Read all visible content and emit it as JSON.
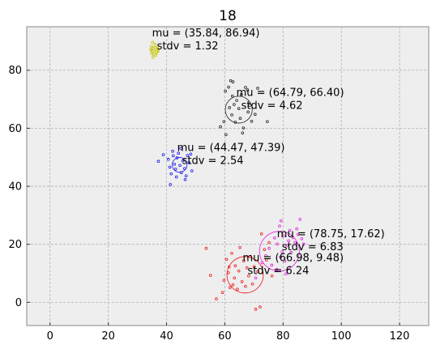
{
  "chart_data": {
    "type": "scatter",
    "title": "18",
    "xlabel": "",
    "ylabel": "",
    "xlim": [
      -8,
      130
    ],
    "ylim": [
      -8,
      95
    ],
    "xticks": [
      0,
      20,
      40,
      60,
      80,
      100,
      120
    ],
    "yticks": [
      0,
      20,
      40,
      60,
      80
    ],
    "grid": true,
    "background": "#eeeeee",
    "clusters": [
      {
        "color": "#c8c814",
        "mu": [
          35.84,
          86.94
        ],
        "stdv": 1.32,
        "label_mu": "mu = (35.84, 86.94)",
        "label_stdv": "stdv = 1.32",
        "points": [
          [
            35.2,
            89.6
          ],
          [
            36.1,
            88.9
          ],
          [
            34.8,
            88.2
          ],
          [
            35.5,
            87.6
          ],
          [
            36.4,
            87.3
          ],
          [
            35.0,
            86.8
          ],
          [
            35.9,
            86.5
          ],
          [
            36.7,
            86.2
          ],
          [
            34.9,
            85.8
          ],
          [
            35.6,
            85.4
          ],
          [
            36.3,
            85.1
          ],
          [
            35.3,
            84.4
          ],
          [
            36.9,
            87.9
          ],
          [
            34.6,
            87.1
          ],
          [
            37.2,
            86.7
          ]
        ]
      },
      {
        "color": "#222222",
        "mu": [
          64.79,
          66.4
        ],
        "stdv": 4.62,
        "label_mu": "mu = (64.79, 66.40)",
        "label_stdv": "stdv = 4.62",
        "points": [
          [
            58.5,
            60.5
          ],
          [
            59.7,
            62.3
          ],
          [
            60.4,
            57.8
          ],
          [
            61.3,
            74.2
          ],
          [
            62.0,
            76.4
          ],
          [
            62.8,
            76.0
          ],
          [
            62.6,
            71.1
          ],
          [
            63.2,
            68.2
          ],
          [
            62.4,
            64.6
          ],
          [
            63.6,
            62.1
          ],
          [
            64.1,
            69.6
          ],
          [
            64.8,
            66.8
          ],
          [
            65.3,
            63.4
          ],
          [
            65.7,
            71.6
          ],
          [
            66.4,
            60.1
          ],
          [
            67.1,
            74.1
          ],
          [
            67.8,
            73.2
          ],
          [
            68.5,
            67.9
          ],
          [
            68.0,
            65.6
          ],
          [
            69.2,
            62.4
          ],
          [
            70.4,
            64.8
          ],
          [
            71.3,
            73.8
          ],
          [
            74.6,
            62.3
          ],
          [
            61.6,
            67.1
          ],
          [
            60.2,
            72.8
          ],
          [
            66.1,
            58.4
          ]
        ]
      },
      {
        "color": "#1a1aee",
        "mu": [
          44.47,
          47.39
        ],
        "stdv": 2.54,
        "label_mu": "mu = (44.47, 47.39)",
        "label_stdv": "stdv = 2.54",
        "points": [
          [
            37.2,
            48.6
          ],
          [
            38.9,
            50.9
          ],
          [
            40.6,
            49.3
          ],
          [
            41.1,
            46.6
          ],
          [
            41.6,
            44.3
          ],
          [
            41.3,
            40.6
          ],
          [
            42.1,
            52.1
          ],
          [
            42.7,
            47.6
          ],
          [
            43.1,
            45.9
          ],
          [
            43.6,
            49.8
          ],
          [
            44.1,
            51.4
          ],
          [
            44.6,
            47.2
          ],
          [
            45.1,
            44.7
          ],
          [
            45.6,
            48.8
          ],
          [
            46.2,
            46.1
          ],
          [
            46.7,
            43.6
          ],
          [
            47.2,
            50.6
          ],
          [
            47.7,
            48.1
          ],
          [
            48.3,
            51.1
          ],
          [
            48.7,
            45.3
          ],
          [
            46.4,
            42.3
          ],
          [
            43.4,
            43.2
          ],
          [
            42.3,
            50.5
          ],
          [
            44.9,
            53.0
          ]
        ]
      },
      {
        "color": "#ee1a1a",
        "mu": [
          66.98,
          9.48
        ],
        "stdv": 6.24,
        "label_mu": "mu = (66.98, 9.48)",
        "label_stdv": "stdv = 6.24",
        "points": [
          [
            53.6,
            18.6
          ],
          [
            55.1,
            9.3
          ],
          [
            57.1,
            1.2
          ],
          [
            59.2,
            3.4
          ],
          [
            59.7,
            7.6
          ],
          [
            60.6,
            14.8
          ],
          [
            61.2,
            10.2
          ],
          [
            61.8,
            5.1
          ],
          [
            62.4,
            16.9
          ],
          [
            63.3,
            8.4
          ],
          [
            63.6,
            12.6
          ],
          [
            64.3,
            4.5
          ],
          [
            64.8,
            10.8
          ],
          [
            65.2,
            18.9
          ],
          [
            65.9,
            7.1
          ],
          [
            66.5,
            14.3
          ],
          [
            67.1,
            5.5
          ],
          [
            67.6,
            11.9
          ],
          [
            68.2,
            9.1
          ],
          [
            68.8,
            15.8
          ],
          [
            69.5,
            6.3
          ],
          [
            70.1,
            12.3
          ],
          [
            70.6,
            -2.4
          ],
          [
            71.3,
            10.6
          ],
          [
            72.1,
            -1.6
          ],
          [
            72.6,
            23.6
          ],
          [
            73.6,
            18.2
          ],
          [
            74.3,
            14.6
          ],
          [
            75.2,
            20.6
          ],
          [
            76.2,
            9.1
          ],
          [
            61.5,
            12.2
          ],
          [
            62.8,
            6.0
          ]
        ]
      },
      {
        "color": "#e020e0",
        "mu": [
          78.75,
          17.62
        ],
        "stdv": 6.83,
        "label_mu": "mu = (78.75, 17.62)",
        "label_stdv": "stdv = 6.83",
        "points": [
          [
            70.6,
            8.4
          ],
          [
            72.8,
            13.6
          ],
          [
            74.1,
            16.1
          ],
          [
            75.2,
            18.6
          ],
          [
            76.1,
            12.8
          ],
          [
            77.1,
            22.2
          ],
          [
            78.0,
            20.1
          ],
          [
            78.8,
            26.3
          ],
          [
            79.1,
            15.6
          ],
          [
            79.7,
            17.4
          ],
          [
            80.2,
            22.9
          ],
          [
            80.6,
            14.2
          ],
          [
            81.3,
            19.6
          ],
          [
            81.9,
            21.2
          ],
          [
            82.3,
            24.8
          ],
          [
            82.8,
            17.2
          ],
          [
            83.4,
            22.3
          ],
          [
            84.1,
            20.6
          ],
          [
            84.7,
            25.3
          ],
          [
            85.1,
            23.4
          ],
          [
            85.8,
            28.6
          ],
          [
            86.4,
            21.9
          ],
          [
            87.1,
            20.1
          ],
          [
            79.3,
            28.1
          ],
          [
            77.8,
            11.3
          ],
          [
            81.0,
            9.8
          ]
        ]
      }
    ]
  }
}
